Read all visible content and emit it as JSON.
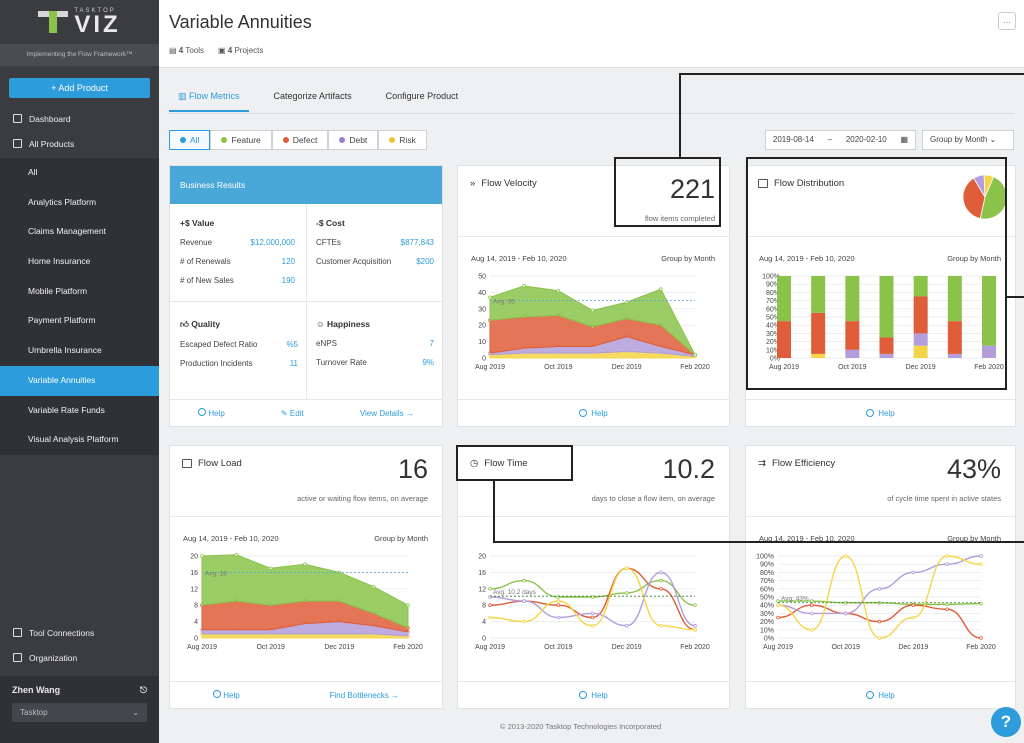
{
  "sidebar": {
    "brand_small": "TASKTOP",
    "brand_big": "VIZ",
    "tagline": "Implementing the Flow Framework™",
    "add_product": "+ Add Product",
    "dashboard": "Dashboard",
    "all_products": "All Products",
    "products": [
      "All",
      "Analytics Platform",
      "Claims Management",
      "Home Insurance",
      "Mobile Platform",
      "Payment Platform",
      "Umbrella Insurance",
      "Variable Annuities",
      "Variable Rate Funds",
      "Visual Analysis Platform"
    ],
    "active_product": "Variable Annuities",
    "tool_connections": "Tool Connections",
    "organization": "Organization",
    "user_name": "Zhen Wang",
    "org_select": "Tasktop"
  },
  "header": {
    "title": "Variable Annuities",
    "tools": "4",
    "tools_label": "Tools",
    "projects": "4",
    "projects_label": "Projects",
    "more": "..."
  },
  "tabs": [
    "Flow Metrics",
    "Categorize Artifacts",
    "Configure Product"
  ],
  "filters": {
    "chips": [
      {
        "label": "All",
        "color": "#2d9cdb"
      },
      {
        "label": "Feature",
        "color": "#8bc34a"
      },
      {
        "label": "Defect",
        "color": "#e05d3a"
      },
      {
        "label": "Debt",
        "color": "#9b7fc4"
      },
      {
        "label": "Risk",
        "color": "#f0c330"
      }
    ],
    "date_from": "2019-08-14",
    "date_sep": "–",
    "date_to": "2020-02-10",
    "group": "Group by Month"
  },
  "business": {
    "title": "Business Results",
    "value_title": "+$ Value",
    "value_rows": [
      {
        "k": "Revenue",
        "v": "$12,000,000"
      },
      {
        "k": "# of Renewals",
        "v": "120"
      },
      {
        "k": "# of New Sales",
        "v": "190"
      }
    ],
    "cost_title": "-$ Cost",
    "cost_rows": [
      {
        "k": "CFTEs",
        "v": "$877,843"
      },
      {
        "k": "Customer Acquisition",
        "v": "$200"
      }
    ],
    "quality_title": "Quality",
    "quality_rows": [
      {
        "k": "Escaped Defect Ratio",
        "v": "%5"
      },
      {
        "k": "Production Incidents",
        "v": "11"
      }
    ],
    "happiness_title": "Happiness",
    "happiness_rows": [
      {
        "k": "eNPS",
        "v": "7"
      },
      {
        "k": "Turnover Rate",
        "v": "9%"
      }
    ],
    "help": "Help",
    "edit": "Edit",
    "view_details": "View Details"
  },
  "velocity": {
    "title": "Flow Velocity",
    "value": "221",
    "sub": "flow items completed",
    "range": "Aug 14, 2019 - Feb 10, 2020",
    "group": "Group by Month",
    "help": "Help"
  },
  "distribution": {
    "title": "Flow Distribution",
    "range": "Aug 14, 2019 - Feb 10, 2020",
    "group": "Group by Month",
    "help": "Help"
  },
  "load": {
    "title": "Flow Load",
    "value": "16",
    "sub": "active or waiting flow items, on average",
    "range": "Aug 14, 2019 - Feb 10, 2020",
    "group": "Group by Month",
    "help": "Help",
    "bottlenecks": "Find Bottlenecks"
  },
  "flowtime": {
    "title": "Flow Time",
    "value": "10.2",
    "sub": "days to close a flow item, on average",
    "help": "Help"
  },
  "efficiency": {
    "title": "Flow Efficiency",
    "value": "43%",
    "sub": "of cycle time spent in active states",
    "range": "Aug 14, 2019 - Feb 10, 2020",
    "group": "Group by Month",
    "help": "Help"
  },
  "colors": {
    "feature": "#8bc34a",
    "defect": "#e05d3a",
    "debt": "#b39ddb",
    "risk": "#f5d547",
    "accent": "#2d9cdb"
  },
  "chart_data": [
    {
      "type": "area",
      "title": "Flow Velocity",
      "x": [
        "Aug 2019",
        "Sep 2019",
        "Oct 2019",
        "Nov 2019",
        "Dec 2019",
        "Jan 2020",
        "Feb 2020"
      ],
      "xticks": [
        "Aug 2019",
        "Oct 2019",
        "Dec 2019",
        "Feb 2020"
      ],
      "ylim": [
        0,
        50
      ],
      "yticks": [
        0,
        10,
        20,
        30,
        40,
        50
      ],
      "avg": 35,
      "avg_label": "Avg: 35",
      "series": [
        {
          "name": "Risk",
          "values": [
            2,
            3,
            3,
            3,
            4,
            3,
            1
          ]
        },
        {
          "name": "Debt",
          "values": [
            1,
            3,
            4,
            4,
            9,
            4,
            1
          ]
        },
        {
          "name": "Defect",
          "values": [
            20,
            19,
            19,
            12,
            11,
            13,
            0
          ]
        },
        {
          "name": "Feature",
          "values": [
            14,
            19,
            15,
            10,
            10,
            22,
            0
          ]
        }
      ]
    },
    {
      "type": "bar",
      "title": "Flow Distribution",
      "x": [
        "Aug 2019",
        "Sep 2019",
        "Oct 2019",
        "Nov 2019",
        "Dec 2019",
        "Jan 2020",
        "Feb 2020"
      ],
      "xticks": [
        "Aug 2019",
        "Oct 2019",
        "Dec 2019",
        "Feb 2020"
      ],
      "ylim": [
        0,
        100
      ],
      "yticks": [
        "0%",
        "10%",
        "20%",
        "30%",
        "40%",
        "50%",
        "60%",
        "70%",
        "80%",
        "90%",
        "100%"
      ],
      "series": [
        {
          "name": "Risk",
          "values": [
            0,
            5,
            0,
            0,
            15,
            0,
            0
          ]
        },
        {
          "name": "Debt",
          "values": [
            0,
            0,
            10,
            5,
            15,
            5,
            15
          ]
        },
        {
          "name": "Defect",
          "values": [
            45,
            50,
            35,
            20,
            45,
            40,
            0
          ]
        },
        {
          "name": "Feature",
          "values": [
            55,
            45,
            55,
            75,
            25,
            55,
            85
          ]
        }
      ],
      "pie": [
        {
          "name": "Feature",
          "value": 47.1
        },
        {
          "name": "Defect",
          "value": 37.9
        },
        {
          "name": "Debt",
          "value": 8
        },
        {
          "name": "Risk",
          "value": 7
        }
      ]
    },
    {
      "type": "area",
      "title": "Flow Load",
      "x": [
        "Aug 2019",
        "Sep 2019",
        "Oct 2019",
        "Nov 2019",
        "Dec 2019",
        "Jan 2020",
        "Feb 2020"
      ],
      "xticks": [
        "Aug 2019",
        "Oct 2019",
        "Dec 2019",
        "Feb 2020"
      ],
      "ylim": [
        0,
        20
      ],
      "yticks": [
        0,
        4,
        8,
        12,
        16,
        20
      ],
      "avg": 16,
      "avg_label": "Avg: 16",
      "series": [
        {
          "name": "Risk",
          "values": [
            1,
            1,
            1,
            1,
            1,
            1,
            0.5
          ]
        },
        {
          "name": "Debt",
          "values": [
            1,
            1,
            1,
            2.5,
            3,
            2,
            1
          ]
        },
        {
          "name": "Defect",
          "values": [
            6,
            7,
            6,
            5.5,
            5,
            3,
            1
          ]
        },
        {
          "name": "Feature",
          "values": [
            12,
            11.3,
            9,
            9,
            7,
            6.5,
            5.5
          ]
        }
      ]
    },
    {
      "type": "line",
      "title": "Flow Time",
      "x": [
        "Aug 2019",
        "Sep 2019",
        "Oct 2019",
        "Nov 2019",
        "Dec 2019",
        "Jan 2020",
        "Feb 2020"
      ],
      "xticks": [
        "Aug 2019",
        "Oct 2019",
        "Dec 2019",
        "Feb 2020"
      ],
      "ylim": [
        0,
        20
      ],
      "yticks": [
        0,
        4,
        8,
        12,
        16,
        20
      ],
      "avg": 10.2,
      "avg_label": "Avg: 10.2 days",
      "series": [
        {
          "name": "Feature",
          "values": [
            12,
            14,
            10,
            10,
            11,
            14,
            8
          ]
        },
        {
          "name": "Defect",
          "values": [
            8,
            9,
            8,
            5,
            17,
            12,
            2
          ]
        },
        {
          "name": "Debt",
          "values": [
            10,
            9,
            5,
            6,
            3,
            16,
            3
          ]
        },
        {
          "name": "Risk",
          "values": [
            5,
            4,
            9,
            3,
            17,
            3,
            2
          ]
        }
      ]
    },
    {
      "type": "line",
      "title": "Flow Efficiency",
      "x": [
        "Aug 2019",
        "Sep 2019",
        "Oct 2019",
        "Nov 2019",
        "Dec 2019",
        "Jan 2020",
        "Feb 2020"
      ],
      "xticks": [
        "Aug 2019",
        "Oct 2019",
        "Dec 2019",
        "Feb 2020"
      ],
      "ylim": [
        0,
        100
      ],
      "yticks": [
        "0%",
        "10%",
        "20%",
        "30%",
        "40%",
        "50%",
        "60%",
        "70%",
        "80%",
        "90%",
        "100%"
      ],
      "avg": 43,
      "avg_label": "Avg: 43%",
      "series": [
        {
          "name": "Feature",
          "values": [
            45,
            45,
            43,
            43,
            41,
            41,
            42
          ]
        },
        {
          "name": "Defect",
          "values": [
            25,
            40,
            30,
            20,
            40,
            35,
            0
          ]
        },
        {
          "name": "Debt",
          "values": [
            40,
            30,
            30,
            60,
            80,
            90,
            100
          ]
        },
        {
          "name": "Risk",
          "values": [
            40,
            10,
            100,
            0,
            25,
            100,
            90
          ]
        }
      ]
    }
  ]
}
